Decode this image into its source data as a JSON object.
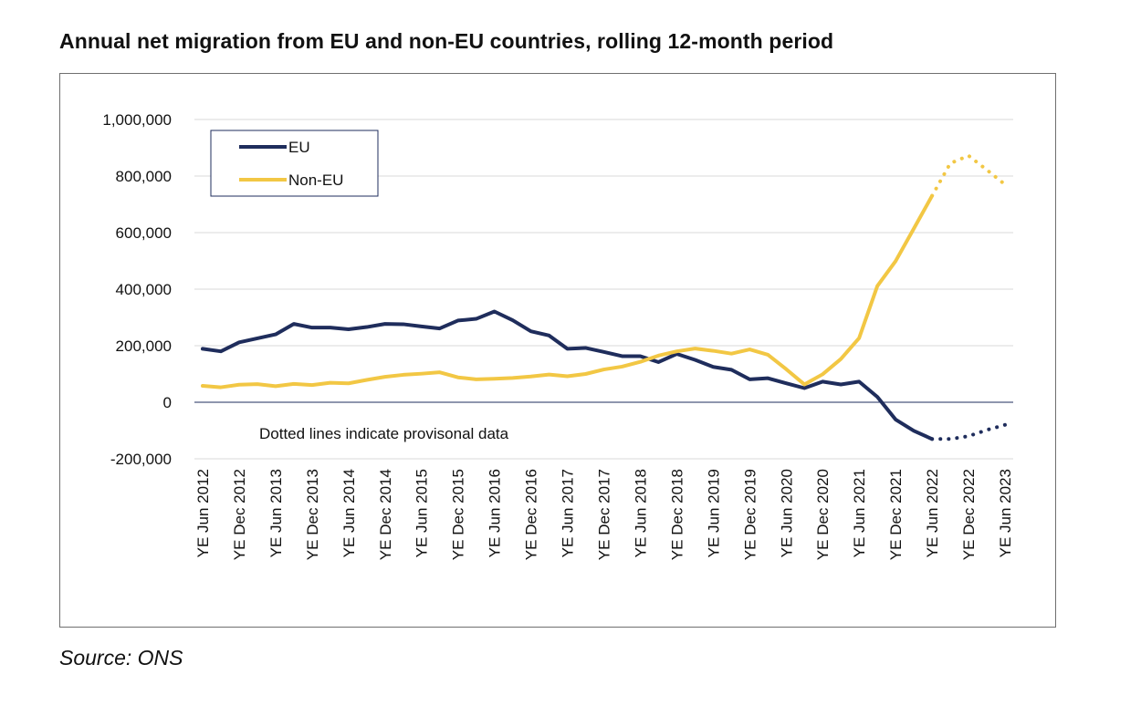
{
  "title": "Annual net migration from EU and non-EU countries, rolling 12-month period",
  "source": "Source: ONS",
  "chart_data": {
    "type": "line",
    "title": "Annual net migration from EU and non-EU countries, rolling 12-month period",
    "xlabel": "",
    "ylabel": "",
    "ylim": [
      -200000,
      1000000
    ],
    "yticks": [
      -200000,
      0,
      200000,
      400000,
      600000,
      800000,
      1000000
    ],
    "ytick_labels": [
      "-200,000",
      "0",
      "200,000",
      "400,000",
      "600,000",
      "800,000",
      "1,000,000"
    ],
    "grid": true,
    "legend_position": "top-left",
    "x": [
      "YE Jun 2012",
      "YE Sep 2012",
      "YE Dec 2012",
      "YE Mar 2013",
      "YE Jun 2013",
      "YE Sep 2013",
      "YE Dec 2013",
      "YE Mar 2014",
      "YE Jun 2014",
      "YE Sep 2014",
      "YE Dec 2014",
      "YE Mar 2015",
      "YE Jun 2015",
      "YE Sep 2015",
      "YE Dec 2015",
      "YE Mar 2016",
      "YE Jun 2016",
      "YE Sep 2016",
      "YE Dec 2016",
      "YE Mar 2017",
      "YE Jun 2017",
      "YE Sep 2017",
      "YE Dec 2017",
      "YE Mar 2018",
      "YE Jun 2018",
      "YE Sep 2018",
      "YE Dec 2018",
      "YE Mar 2019",
      "YE Jun 2019",
      "YE Sep 2019",
      "YE Dec 2019",
      "YE Mar 2020",
      "YE Jun 2020",
      "YE Sep 2020",
      "YE Dec 2020",
      "YE Mar 2021",
      "YE Jun 2021",
      "YE Sep 2021",
      "YE Dec 2021",
      "YE Mar 2022",
      "YE Jun 2022",
      "YE Sep 2022",
      "YE Dec 2022",
      "YE Mar 2023",
      "YE Jun 2023"
    ],
    "x_tick_labels": [
      "YE Jun 2012",
      "YE Dec 2012",
      "YE Jun 2013",
      "YE Dec 2013",
      "YE Jun 2014",
      "YE Dec 2014",
      "YE Jun 2015",
      "YE Dec 2015",
      "YE Jun 2016",
      "YE Dec 2016",
      "YE Jun 2017",
      "YE Dec 2017",
      "YE Jun 2018",
      "YE Dec 2018",
      "YE Jun 2019",
      "YE Dec 2019",
      "YE Jun 2020",
      "YE Dec 2020",
      "YE Jun 2021",
      "YE Dec 2021",
      "YE Jun 2022",
      "YE Dec 2022",
      "YE Jun 2023"
    ],
    "provisional_from": "YE Jun 2022",
    "series": [
      {
        "name": "EU",
        "color": "#1f2d5c",
        "values": [
          189000,
          180000,
          212000,
          226000,
          240000,
          277000,
          264000,
          264000,
          258000,
          266000,
          277000,
          276000,
          268000,
          261000,
          289000,
          295000,
          321000,
          290000,
          251000,
          236000,
          189000,
          192000,
          178000,
          163000,
          163000,
          142000,
          171000,
          150000,
          125000,
          115000,
          81000,
          85000,
          67000,
          50000,
          73000,
          63000,
          73000,
          19000,
          -61000,
          -101000,
          -130000,
          -130000,
          -120000,
          -98000,
          -80000
        ]
      },
      {
        "name": "Non-EU",
        "color": "#f2c744",
        "values": [
          58000,
          53000,
          62000,
          64000,
          57000,
          65000,
          61000,
          69000,
          67000,
          79000,
          90000,
          97000,
          101000,
          106000,
          88000,
          81000,
          83000,
          86000,
          91000,
          98000,
          92000,
          100000,
          116000,
          126000,
          143000,
          165000,
          180000,
          190000,
          182000,
          172000,
          187000,
          168000,
          117000,
          63000,
          99000,
          153000,
          227000,
          411000,
          499000,
          614000,
          730000,
          845000,
          872000,
          822000,
          770000
        ]
      }
    ]
  },
  "legend": {
    "items": [
      {
        "label": "EU",
        "color": "#1f2d5c"
      },
      {
        "label": "Non-EU",
        "color": "#f2c744"
      }
    ]
  },
  "annotation": {
    "text": "Dotted lines indicate provisonal data"
  }
}
